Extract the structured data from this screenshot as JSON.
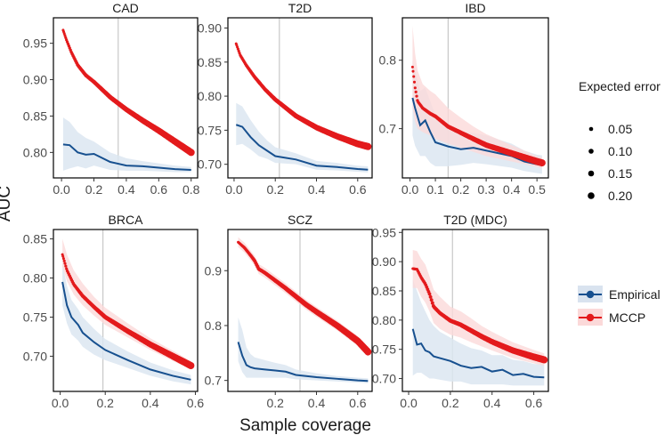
{
  "chart_data": {
    "type": "line",
    "ylabel": "AUC",
    "xlabel": "Sample coverage",
    "size_legend": {
      "title": "Expected error",
      "values": [
        "0.05",
        "0.10",
        "0.15",
        "0.20"
      ]
    },
    "color_legend": [
      {
        "name": "Empirical",
        "color": "#17508f"
      },
      {
        "name": "MCCP",
        "color": "#e31a1c"
      }
    ],
    "panels": [
      {
        "title": "CAD",
        "xlim": [
          -0.05,
          0.84
        ],
        "ylim": [
          0.765,
          0.985
        ],
        "xticks": [
          0.0,
          0.2,
          0.4,
          0.6,
          0.8
        ],
        "xticklabels": [
          "0.0",
          "0.2",
          "0.4",
          "0.6",
          "0.8"
        ],
        "yticks": [
          0.8,
          0.85,
          0.9,
          0.95
        ],
        "yticklabels": [
          "0.80",
          "0.85",
          "0.90",
          "0.95"
        ],
        "vline": 0.35,
        "mccp": {
          "x": [
            0.01,
            0.03,
            0.06,
            0.1,
            0.15,
            0.2,
            0.3,
            0.4,
            0.5,
            0.6,
            0.7,
            0.8
          ],
          "y": [
            0.968,
            0.955,
            0.938,
            0.92,
            0.906,
            0.897,
            0.876,
            0.859,
            0.844,
            0.83,
            0.815,
            0.8
          ],
          "band": 0.004
        },
        "empirical": {
          "x": [
            0.01,
            0.05,
            0.1,
            0.15,
            0.2,
            0.3,
            0.4,
            0.5,
            0.6,
            0.7,
            0.8
          ],
          "y": [
            0.811,
            0.81,
            0.8,
            0.797,
            0.798,
            0.787,
            0.782,
            0.781,
            0.779,
            0.777,
            0.776
          ],
          "band_lo": [
            0.775,
            0.778,
            0.781,
            0.778,
            0.782,
            0.776,
            0.775,
            0.775,
            0.774,
            0.773,
            0.773
          ],
          "band_hi": [
            0.848,
            0.842,
            0.828,
            0.82,
            0.815,
            0.8,
            0.792,
            0.788,
            0.785,
            0.782,
            0.78
          ]
        }
      },
      {
        "title": "T2D",
        "xlim": [
          -0.03,
          0.67
        ],
        "ylim": [
          0.68,
          0.915
        ],
        "xticks": [
          0.0,
          0.2,
          0.4,
          0.6
        ],
        "xticklabels": [
          "0.0",
          "0.2",
          "0.4",
          "0.6"
        ],
        "yticks": [
          0.7,
          0.75,
          0.8,
          0.85,
          0.9
        ],
        "yticklabels": [
          "0.70",
          "0.75",
          "0.80",
          "0.85",
          "0.90"
        ],
        "vline": 0.22,
        "mccp": {
          "x": [
            0.01,
            0.03,
            0.06,
            0.1,
            0.15,
            0.2,
            0.3,
            0.4,
            0.5,
            0.6,
            0.65
          ],
          "y": [
            0.877,
            0.86,
            0.845,
            0.828,
            0.81,
            0.795,
            0.771,
            0.754,
            0.741,
            0.73,
            0.726
          ],
          "band": 0.004
        },
        "empirical": {
          "x": [
            0.01,
            0.04,
            0.08,
            0.12,
            0.16,
            0.2,
            0.3,
            0.4,
            0.5,
            0.6,
            0.65
          ],
          "y": [
            0.758,
            0.755,
            0.74,
            0.728,
            0.72,
            0.712,
            0.707,
            0.698,
            0.696,
            0.693,
            0.692
          ],
          "band_lo": [
            0.728,
            0.73,
            0.722,
            0.712,
            0.708,
            0.702,
            0.7,
            0.692,
            0.691,
            0.689,
            0.688
          ],
          "band_hi": [
            0.79,
            0.785,
            0.765,
            0.748,
            0.735,
            0.725,
            0.716,
            0.705,
            0.702,
            0.698,
            0.697
          ]
        }
      },
      {
        "title": "IBD",
        "xlim": [
          -0.03,
          0.545
        ],
        "ylim": [
          0.628,
          0.862
        ],
        "xticks": [
          0.0,
          0.1,
          0.2,
          0.3,
          0.4,
          0.5
        ],
        "xticklabels": [
          "0.0",
          "0.1",
          "0.2",
          "0.3",
          "0.4",
          "0.5"
        ],
        "yticks": [
          0.7,
          0.8
        ],
        "yticklabels": [
          "0.7",
          "0.8"
        ],
        "vline": 0.15,
        "mccp": {
          "x": [
            0.01,
            0.02,
            0.03,
            0.05,
            0.08,
            0.1,
            0.15,
            0.2,
            0.25,
            0.3,
            0.4,
            0.5,
            0.52
          ],
          "y": [
            0.79,
            0.76,
            0.74,
            0.73,
            0.722,
            0.718,
            0.703,
            0.694,
            0.685,
            0.676,
            0.664,
            0.652,
            0.65
          ],
          "band_lo": [
            0.73,
            0.71,
            0.7,
            0.695,
            0.69,
            0.685,
            0.678,
            0.672,
            0.666,
            0.66,
            0.652,
            0.644,
            0.642
          ],
          "band_hi": [
            0.85,
            0.81,
            0.785,
            0.765,
            0.755,
            0.75,
            0.73,
            0.716,
            0.703,
            0.692,
            0.676,
            0.66,
            0.658
          ]
        },
        "empirical": {
          "x": [
            0.01,
            0.02,
            0.04,
            0.06,
            0.08,
            0.1,
            0.15,
            0.2,
            0.25,
            0.3,
            0.4,
            0.45,
            0.5,
            0.52
          ],
          "y": [
            0.745,
            0.73,
            0.705,
            0.712,
            0.695,
            0.68,
            0.674,
            0.67,
            0.672,
            0.668,
            0.66,
            0.652,
            0.648,
            0.647
          ],
          "band_lo": [
            0.69,
            0.675,
            0.66,
            0.66,
            0.65,
            0.645,
            0.645,
            0.647,
            0.65,
            0.648,
            0.643,
            0.638,
            0.635,
            0.634
          ],
          "band_hi": [
            0.8,
            0.785,
            0.755,
            0.76,
            0.74,
            0.72,
            0.705,
            0.695,
            0.694,
            0.69,
            0.678,
            0.668,
            0.662,
            0.661
          ]
        }
      },
      {
        "title": "BRCA",
        "xlim": [
          -0.03,
          0.61
        ],
        "ylim": [
          0.655,
          0.862
        ],
        "xticks": [
          0.0,
          0.2,
          0.4,
          0.6
        ],
        "xticklabels": [
          "0.0",
          "0.2",
          "0.4",
          "0.6"
        ],
        "yticks": [
          0.7,
          0.75,
          0.8,
          0.85
        ],
        "yticklabels": [
          "0.70",
          "0.75",
          "0.80",
          "0.85"
        ],
        "vline": 0.19,
        "mccp": {
          "x": [
            0.01,
            0.03,
            0.06,
            0.1,
            0.15,
            0.2,
            0.3,
            0.4,
            0.5,
            0.58
          ],
          "y": [
            0.83,
            0.81,
            0.792,
            0.777,
            0.763,
            0.75,
            0.732,
            0.715,
            0.7,
            0.688
          ],
          "band_lo": [
            0.815,
            0.796,
            0.779,
            0.765,
            0.752,
            0.74,
            0.724,
            0.708,
            0.694,
            0.683
          ],
          "band_hi": [
            0.85,
            0.83,
            0.81,
            0.793,
            0.776,
            0.762,
            0.742,
            0.723,
            0.707,
            0.694
          ]
        },
        "empirical": {
          "x": [
            0.01,
            0.03,
            0.05,
            0.08,
            0.1,
            0.15,
            0.2,
            0.3,
            0.4,
            0.5,
            0.58
          ],
          "y": [
            0.795,
            0.765,
            0.75,
            0.74,
            0.73,
            0.718,
            0.708,
            0.695,
            0.683,
            0.675,
            0.67
          ],
          "band_lo": [
            0.765,
            0.742,
            0.728,
            0.72,
            0.712,
            0.702,
            0.695,
            0.685,
            0.675,
            0.668,
            0.664
          ],
          "band_hi": [
            0.82,
            0.79,
            0.772,
            0.76,
            0.75,
            0.735,
            0.722,
            0.706,
            0.692,
            0.682,
            0.676
          ]
        }
      },
      {
        "title": "SCZ",
        "xlim": [
          -0.03,
          0.67
        ],
        "ylim": [
          0.68,
          0.975
        ],
        "xticks": [
          0.2,
          0.4,
          0.6
        ],
        "xticklabels": [
          "0.2",
          "0.4",
          "0.6"
        ],
        "yticks": [
          0.7,
          0.8,
          0.9
        ],
        "yticklabels": [
          "0.7",
          "0.8",
          "0.9"
        ],
        "vline": 0.32,
        "mccp": {
          "x": [
            0.02,
            0.05,
            0.08,
            0.1,
            0.12,
            0.15,
            0.2,
            0.25,
            0.3,
            0.35,
            0.4,
            0.5,
            0.6,
            0.65
          ],
          "y": [
            0.952,
            0.942,
            0.928,
            0.918,
            0.903,
            0.896,
            0.882,
            0.868,
            0.853,
            0.838,
            0.825,
            0.8,
            0.772,
            0.752
          ],
          "band": 0.009
        },
        "empirical": {
          "x": [
            0.02,
            0.04,
            0.06,
            0.08,
            0.1,
            0.15,
            0.2,
            0.25,
            0.3,
            0.4,
            0.5,
            0.6,
            0.65
          ],
          "y": [
            0.77,
            0.745,
            0.728,
            0.724,
            0.722,
            0.72,
            0.718,
            0.716,
            0.71,
            0.706,
            0.703,
            0.7,
            0.699
          ],
          "band_lo": [
            0.735,
            0.715,
            0.705,
            0.705,
            0.705,
            0.705,
            0.705,
            0.705,
            0.702,
            0.7,
            0.698,
            0.696,
            0.695
          ],
          "band_hi": [
            0.815,
            0.792,
            0.76,
            0.748,
            0.742,
            0.737,
            0.732,
            0.728,
            0.72,
            0.713,
            0.708,
            0.705,
            0.704
          ]
        }
      },
      {
        "title": "T2D (MDC)",
        "xlim": [
          -0.03,
          0.67
        ],
        "ylim": [
          0.678,
          0.955
        ],
        "xticks": [
          0.0,
          0.2,
          0.4,
          0.6
        ],
        "xticklabels": [
          "0.0",
          "0.2",
          "0.4",
          "0.6"
        ],
        "yticks": [
          0.7,
          0.75,
          0.8,
          0.85,
          0.9,
          0.95
        ],
        "yticklabels": [
          "0.70",
          "0.75",
          "0.80",
          "0.85",
          "0.90",
          "0.95"
        ],
        "vline": 0.21,
        "mccp": {
          "x": [
            0.02,
            0.04,
            0.06,
            0.08,
            0.1,
            0.12,
            0.15,
            0.2,
            0.25,
            0.3,
            0.35,
            0.4,
            0.5,
            0.6,
            0.65
          ],
          "y": [
            0.888,
            0.887,
            0.873,
            0.862,
            0.845,
            0.823,
            0.812,
            0.799,
            0.792,
            0.782,
            0.772,
            0.763,
            0.748,
            0.737,
            0.732
          ],
          "band_lo": [
            0.855,
            0.855,
            0.84,
            0.83,
            0.815,
            0.795,
            0.785,
            0.775,
            0.77,
            0.762,
            0.755,
            0.748,
            0.735,
            0.726,
            0.722
          ],
          "band_hi": [
            0.92,
            0.918,
            0.905,
            0.895,
            0.875,
            0.852,
            0.84,
            0.823,
            0.815,
            0.803,
            0.79,
            0.78,
            0.762,
            0.749,
            0.743
          ]
        },
        "empirical": {
          "x": [
            0.02,
            0.04,
            0.06,
            0.08,
            0.1,
            0.12,
            0.15,
            0.2,
            0.25,
            0.3,
            0.35,
            0.4,
            0.45,
            0.5,
            0.55,
            0.6,
            0.65
          ],
          "y": [
            0.785,
            0.758,
            0.76,
            0.748,
            0.745,
            0.738,
            0.735,
            0.73,
            0.722,
            0.718,
            0.72,
            0.712,
            0.715,
            0.706,
            0.708,
            0.703,
            0.702
          ],
          "band_lo": [
            0.705,
            0.71,
            0.71,
            0.705,
            0.7,
            0.7,
            0.698,
            0.695,
            0.695,
            0.69,
            0.69,
            0.69,
            0.69,
            0.688,
            0.688,
            0.688,
            0.688
          ],
          "band_hi": [
            0.87,
            0.85,
            0.83,
            0.815,
            0.8,
            0.79,
            0.78,
            0.77,
            0.76,
            0.752,
            0.748,
            0.74,
            0.74,
            0.732,
            0.73,
            0.725,
            0.724
          ]
        }
      }
    ]
  }
}
